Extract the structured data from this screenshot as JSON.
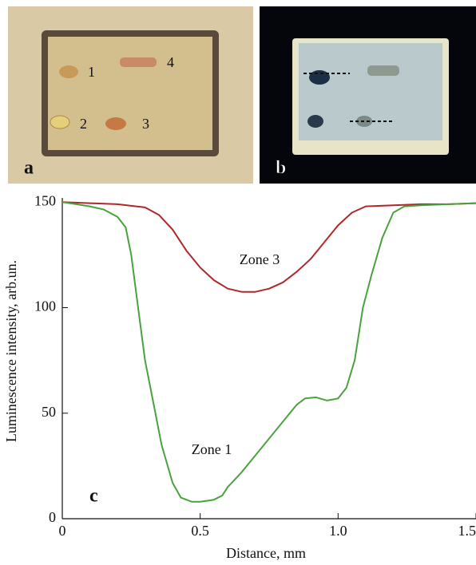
{
  "photo_a": {
    "label": "a",
    "spots": [
      "1",
      "2",
      "3",
      "4"
    ]
  },
  "photo_b": {
    "label": "b"
  },
  "chart_data": {
    "type": "line",
    "panel_label": "c",
    "x_label": "Distance, mm",
    "y_label": "Luminescence intensity, arb.un.",
    "xlim": [
      0,
      1.5
    ],
    "ylim": [
      0,
      152
    ],
    "xticks": [
      0,
      0.5,
      {
        "value": 1,
        "label": "1.0"
      },
      1.5
    ],
    "yticks": [
      0,
      50,
      100,
      150
    ],
    "annotations": [
      "Zone 3",
      "Zone 1"
    ],
    "series": [
      {
        "color": "#b0282a",
        "x": [
          0,
          0.1,
          0.2,
          0.3,
          0.35,
          0.4,
          0.45,
          0.5,
          0.55,
          0.6,
          0.65,
          0.7,
          0.75,
          0.8,
          0.85,
          0.9,
          0.95,
          1.0,
          1.05,
          1.1,
          1.2,
          1.3,
          1.4,
          1.5
        ],
        "values": [
          150,
          149.5,
          149,
          147.5,
          144,
          137,
          127,
          119,
          113,
          109,
          107.5,
          107.5,
          109,
          112,
          117,
          123,
          131,
          139,
          145,
          148,
          148.5,
          149,
          149,
          149.5
        ]
      },
      {
        "color": "#4aa23e",
        "x": [
          0,
          0.05,
          0.1,
          0.15,
          0.2,
          0.23,
          0.25,
          0.27,
          0.3,
          0.33,
          0.36,
          0.4,
          0.43,
          0.47,
          0.5,
          0.55,
          0.58,
          0.6,
          0.65,
          0.7,
          0.75,
          0.8,
          0.85,
          0.88,
          0.92,
          0.96,
          1.0,
          1.03,
          1.06,
          1.09,
          1.12,
          1.16,
          1.2,
          1.24,
          1.3,
          1.4,
          1.5
        ],
        "values": [
          150,
          149,
          148,
          146.5,
          143,
          138,
          125,
          105,
          75,
          55,
          35,
          17,
          10,
          8,
          8,
          9,
          11,
          15,
          22,
          30,
          38,
          46,
          54,
          57,
          57.5,
          56,
          57,
          62,
          75,
          100,
          115,
          133,
          145,
          148,
          148.5,
          149,
          149.5
        ]
      }
    ]
  }
}
